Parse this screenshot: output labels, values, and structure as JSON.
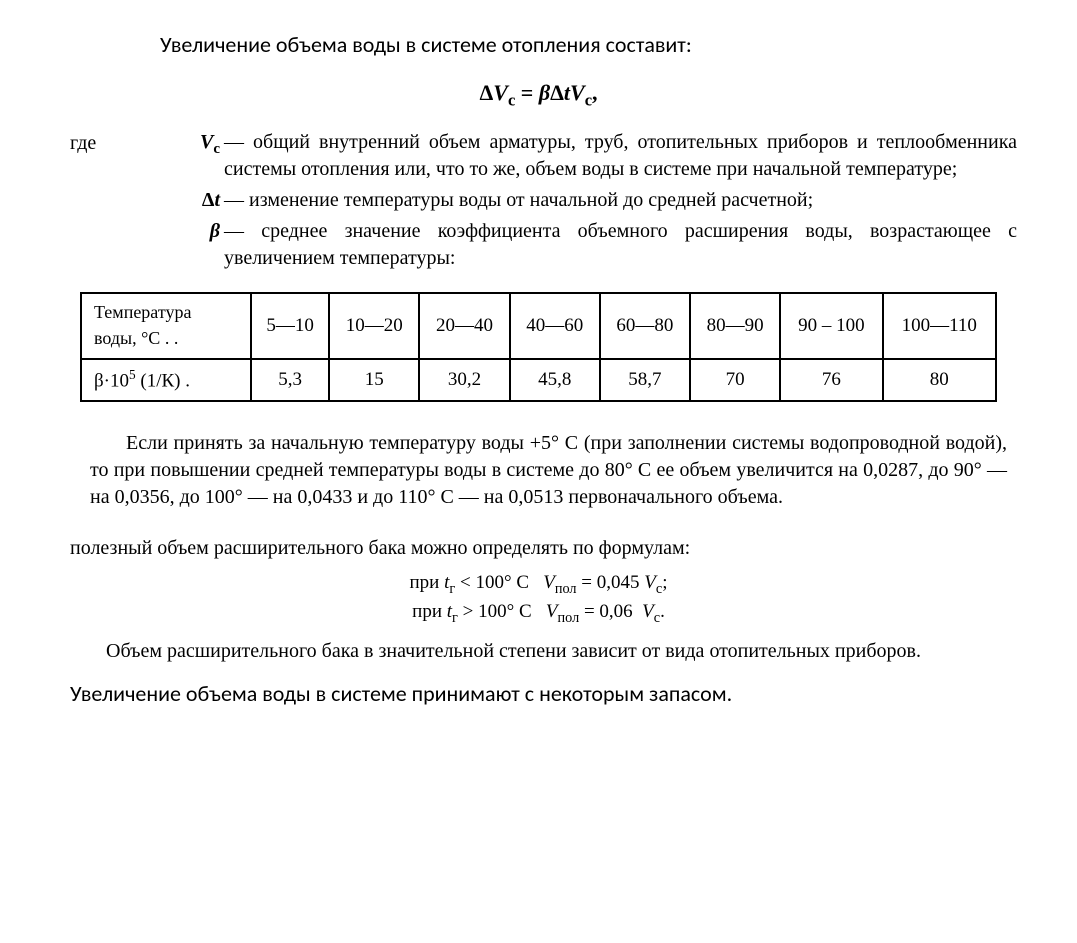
{
  "title_top": "Увеличение объема воды в системе отопления составит:",
  "formula_main": "ΔVс = βΔtVс,",
  "where_label": "где",
  "defs": [
    {
      "symbol": "Vс",
      "text": "общий внутренний объем арматуры, труб, отопительных приборов и теплообменника системы отопления или, что то же, объем воды в системе при начальной температуре;"
    },
    {
      "symbol": "Δt",
      "text": "изменение температуры воды от начальной до средней расчетной;"
    },
    {
      "symbol": "β",
      "text": "среднее значение коэффициента объемного расширения воды, возрастающее с увеличением температуры:"
    }
  ],
  "table": {
    "row1_label_html": "Температура<br>воды, °С . .",
    "row2_label_html": "β·10<sup>5</sup> (1/К) .",
    "ranges": [
      "5—10",
      "10—20",
      "20—40",
      "40—60",
      "60—80",
      "80—90",
      "90 – 100",
      "100—110"
    ],
    "values": [
      "5,3",
      "15",
      "30,2",
      "45,8",
      "58,7",
      "70",
      "76",
      "80"
    ]
  },
  "para_after_table": "Если принять за начальную температуру воды +5° С (при заполнении системы водопроводной водой), то при повышении средней температуры воды в системе до 80° С ее объем увеличится на 0,0287, до 90° — на 0,0356, до 100° — на 0,0433 и до 110° С — на 0,0513 первоначального объема.",
  "para_useful": "полезный объем расширительного бака можно определять по формулам:",
  "formula_small_1_html": "при <span class=\"it\">t</span><sub>г</sub> &lt; 100° С&nbsp;&nbsp;&nbsp;<span class=\"it\">V</span><sub>пол</sub> = 0,045 <span class=\"it\">V</span><sub>с</sub>;",
  "formula_small_2_html": "при <span class=\"it\">t</span><sub>г</sub> &gt; 100° С&nbsp;&nbsp;&nbsp;<span class=\"it\">V</span><sub>пол</sub> = 0,06&nbsp; <span class=\"it\">V</span><sub>с</sub>.",
  "para_tank": "Объем расширительного бака в значительной степени зависит от вида отопительных приборов.",
  "bottom_note": "Увеличение объема воды в системе принимают с некоторым запасом."
}
